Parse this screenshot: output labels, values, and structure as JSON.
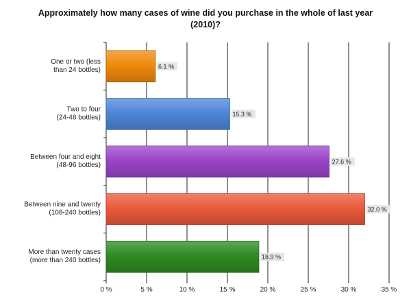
{
  "chart_data": {
    "type": "bar",
    "orientation": "horizontal",
    "title": "Approximately how many cases of wine did you purchase in the whole of last year",
    "title_line2": "(2010)?",
    "categories": [
      [
        "One or two (less",
        "than 24 bottles)"
      ],
      [
        "Two to four",
        "(24-48 bottles)"
      ],
      [
        "Between four and eight",
        "(48-96 bottles)"
      ],
      [
        "Between nine and twenty",
        "(108-240 bottles)"
      ],
      [
        "More than twenty cases",
        "(more than 240 bottles)"
      ]
    ],
    "values": [
      6.1,
      15.3,
      27.6,
      32.0,
      18.9
    ],
    "data_labels": [
      "6.1 %",
      "15.3 %",
      "27.6 %",
      "32.0 %",
      "18.9 %"
    ],
    "bar_colors": [
      "#f08a0c",
      "#4f87d8",
      "#9b45c8",
      "#ea5a3c",
      "#2e8b22"
    ],
    "xlim": [
      0,
      35
    ],
    "xticks": [
      0,
      5,
      10,
      15,
      20,
      25,
      30,
      35
    ],
    "xtick_labels": [
      "0 %",
      "5 %",
      "10 %",
      "15 %",
      "20 %",
      "25 %",
      "30 %",
      "35 %"
    ],
    "grid": "vertical",
    "legend": "none"
  }
}
